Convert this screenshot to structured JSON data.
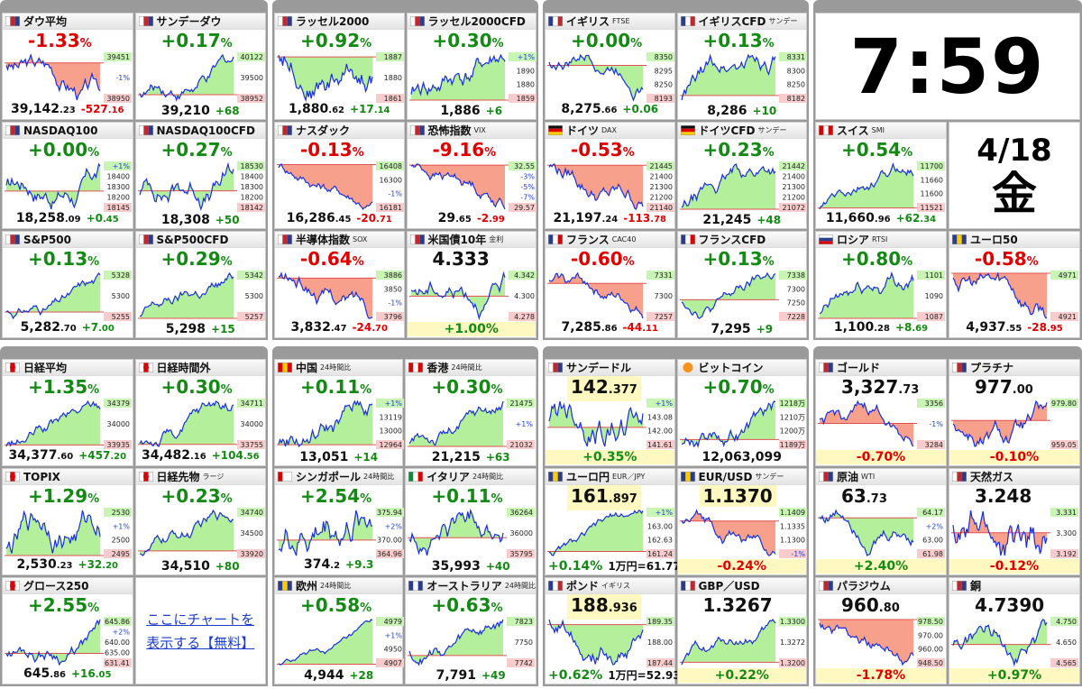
{
  "groups": [
    {
      "tiles": [
        {
          "flag": "us",
          "name": "ダウ平均",
          "headline": [
            "-1.33",
            "%"
          ],
          "scale": [
            "39451",
            "-1%",
            "38950"
          ],
          "bottom": [
            [
              "39,142",
              ".23"
            ],
            [
              "-527",
              ".16"
            ]
          ]
        },
        {
          "flag": "us",
          "name": "サンデーダウ",
          "headline": [
            "+0.17",
            "%"
          ],
          "scale": [
            "40122",
            "39500",
            "38952"
          ],
          "bottom": [
            "39,210",
            "+68"
          ]
        },
        {
          "flag": "us",
          "name": "NASDAQ100",
          "headline": [
            "+0.00",
            "%"
          ],
          "scale": [
            "+1%",
            "18400",
            "18300",
            "18200",
            "18145"
          ],
          "bottom": [
            [
              "18,258",
              ".09"
            ],
            [
              "+0",
              ".45"
            ]
          ]
        },
        {
          "flag": "us",
          "name": "NASDAQ100CFD",
          "headline": [
            "+0.27",
            "%"
          ],
          "scale": [
            "18530",
            "18400",
            "18300",
            "18200",
            "18142"
          ],
          "bottom": [
            "18,308",
            "+50"
          ]
        },
        {
          "flag": "us",
          "name": "S&P500",
          "headline": [
            "+0.13",
            "%"
          ],
          "scale": [
            "5328",
            "5300",
            "5255"
          ],
          "bottom": [
            [
              "5,282",
              ".70"
            ],
            [
              "+7",
              ".00"
            ]
          ]
        },
        {
          "flag": "us",
          "name": "S&P500CFD",
          "headline": [
            "+0.29",
            "%"
          ],
          "scale": [
            "5342",
            "5300",
            "5257"
          ],
          "bottom": [
            "5,298",
            "+15"
          ]
        }
      ]
    },
    {
      "tiles": [
        {
          "flag": "us",
          "name": "ラッセル2000",
          "headline": [
            "+0.92",
            "%"
          ],
          "scale": [
            "1887",
            "1880",
            "1861"
          ],
          "bottom": [
            [
              "1,880",
              ".62"
            ],
            [
              "+17",
              ".14"
            ]
          ]
        },
        {
          "flag": "us",
          "name": "ラッセル2000CFD",
          "headline": [
            "+0.30",
            "%"
          ],
          "scale": [
            "+1%",
            "1890",
            "1880",
            "1859"
          ],
          "bottom": [
            "1,886",
            "+6"
          ]
        },
        {
          "flag": "us",
          "name": "ナスダック",
          "headline": [
            "-0.13",
            "%"
          ],
          "scale": [
            "16408",
            "16300",
            "-1%",
            "16181"
          ],
          "bottom": [
            [
              "16,286",
              ".45"
            ],
            [
              "-20",
              ".71"
            ]
          ]
        },
        {
          "flag": "us",
          "name": "恐怖指数",
          "tag": "VIX",
          "headline": [
            "-9.16",
            "%"
          ],
          "scale": [
            "32.55",
            "-3%",
            "-5%",
            "-7%",
            "29.57"
          ],
          "bottom": [
            [
              "29",
              ".65"
            ],
            [
              "-2",
              ".99"
            ]
          ]
        },
        {
          "flag": "us",
          "name": "半導体指数",
          "tag": "SOX",
          "headline": [
            "-0.64",
            "%"
          ],
          "scale": [
            "3886",
            "3850",
            "-1%",
            "3796"
          ],
          "bottom": [
            [
              "3,832",
              ".47"
            ],
            [
              "-24",
              ".70"
            ]
          ]
        },
        {
          "flag": "us",
          "name": "米国債10年",
          "tag": "金利",
          "headline": [
            "4.333"
          ],
          "scale": [
            "4.342",
            "4.300",
            "4.278"
          ],
          "bottom": [
            "+1.00%"
          ]
        }
      ]
    },
    {
      "tiles": [
        {
          "flag": "uk",
          "name": "イギリス",
          "tag": "FTSE",
          "headline": [
            "+0.00",
            "%"
          ],
          "scale": [
            "8350",
            "8295",
            "8250",
            "8193"
          ],
          "bottom": [
            [
              "8,275",
              ".66"
            ],
            "+0.06"
          ]
        },
        {
          "flag": "uk",
          "name": "イギリスCFD",
          "tag": "サンデー",
          "headline": [
            "+0.13",
            "%"
          ],
          "scale": [
            "8331",
            "8300",
            "8250",
            "8182"
          ],
          "bottom": [
            "8,286",
            "+10"
          ]
        },
        {
          "flag": "de",
          "name": "ドイツ",
          "tag": "DAX",
          "headline": [
            "-0.53",
            "%"
          ],
          "scale": [
            "21445",
            "21400",
            "21300",
            "21200",
            "21140"
          ],
          "bottom": [
            [
              "21,197",
              ".24"
            ],
            [
              "-113",
              ".78"
            ]
          ]
        },
        {
          "flag": "de",
          "name": "ドイツCFD",
          "tag": "サンデー",
          "headline": [
            "+0.23",
            "%"
          ],
          "scale": [
            "21442",
            "21400",
            "21300",
            "21200",
            "21072"
          ],
          "bottom": [
            "21,245",
            "+48"
          ]
        },
        {
          "flag": "fr",
          "name": "フランス",
          "tag": "CAC40",
          "headline": [
            "-0.60",
            "%"
          ],
          "scale": [
            "7331",
            "7300",
            "7257"
          ],
          "bottom": [
            [
              "7,285",
              ".86"
            ],
            [
              "-44",
              ".11"
            ]
          ]
        },
        {
          "flag": "fr",
          "name": "フランスCFD",
          "headline": [
            "+0.13",
            "%"
          ],
          "scale": [
            "7338",
            "7300",
            "7250",
            "7228"
          ],
          "bottom": [
            "7,295",
            "+9"
          ]
        }
      ]
    },
    {
      "tiles": [
        {
          "kind": "clock",
          "text": "7:59"
        },
        {
          "flag": "ch",
          "name": "スイス",
          "tag": "SMI",
          "headline": [
            "+0.54",
            "%"
          ],
          "scale": [
            "11700",
            "11660",
            "11600",
            "11521"
          ],
          "bottom": [
            [
              "11,660",
              ".96"
            ],
            [
              "+62",
              ".34"
            ]
          ]
        },
        {
          "kind": "date",
          "date": "4/18",
          "weekday": "金"
        },
        {
          "flag": "ru",
          "name": "ロシア",
          "tag": "RTSI",
          "headline": [
            "+0.80",
            "%"
          ],
          "scale": [
            "1101",
            "1090",
            "1087"
          ],
          "bottom": [
            [
              "1,100",
              ".28"
            ],
            [
              "+8",
              ".69"
            ]
          ]
        },
        {
          "flag": "eu",
          "name": "ユーロ50",
          "headline": [
            "-0.58",
            "%"
          ],
          "scale": [
            "4971",
            "4921"
          ],
          "bottom": [
            [
              "4,937",
              ".55"
            ],
            [
              "-28",
              ".95"
            ]
          ]
        }
      ]
    },
    {
      "tiles": [
        {
          "flag": "jp",
          "name": "日経平均",
          "headline": [
            "+1.35",
            "%"
          ],
          "scale": [
            "34379",
            "34000",
            "33935"
          ],
          "bottom": [
            [
              "34,377",
              ".60"
            ],
            [
              "+457",
              ".20"
            ]
          ]
        },
        {
          "flag": "jp",
          "name": "日経時間外",
          "headline": [
            "+0.30",
            "%"
          ],
          "scale": [
            "34711",
            "34000",
            "33755"
          ],
          "bottom": [
            [
              "34,482",
              ".16"
            ],
            [
              "+104",
              ".56"
            ]
          ]
        },
        {
          "flag": "jp",
          "name": "TOPIX",
          "headline": [
            "+1.29",
            "%"
          ],
          "scale": [
            "2530",
            "+1%",
            "2500",
            "2495"
          ],
          "bottom": [
            [
              "2,530",
              ".23"
            ],
            [
              "+32",
              ".20"
            ]
          ]
        },
        {
          "flag": "jp",
          "name": "日経先物",
          "tag": "ラージ",
          "headline": [
            "+0.23",
            "%"
          ],
          "scale": [
            "34740",
            "34500",
            "33920"
          ],
          "bottom": [
            "34,510",
            "+80"
          ]
        },
        {
          "flag": "jp",
          "name": "グロース250",
          "headline": [
            "+2.55",
            "%"
          ],
          "scale": [
            "645.86",
            "+2%",
            "640.00",
            "635.00",
            "631.41"
          ],
          "bottom": [
            [
              "645",
              ".86"
            ],
            [
              "+16",
              ".05"
            ]
          ]
        },
        {
          "kind": "link",
          "text": "ここにチャートを表示する【無料】"
        }
      ]
    },
    {
      "tiles": [
        {
          "flag": "cn",
          "name": "中国",
          "tag": "24時間比",
          "headline": [
            "+0.11",
            "%"
          ],
          "scale": [
            "+1%",
            "13119",
            "13000",
            "12964"
          ],
          "bottom": [
            "13,051",
            "+14"
          ]
        },
        {
          "flag": "hk",
          "name": "香港",
          "tag": "24時間比",
          "headline": [
            "+0.30",
            "%"
          ],
          "scale": [
            "21475",
            "+1%",
            "21032"
          ],
          "bottom": [
            "21,215",
            "+63"
          ]
        },
        {
          "flag": "sg",
          "name": "シンガポール",
          "tag": "24時間比",
          "headline": [
            "+2.54",
            "%"
          ],
          "scale": [
            "375.94",
            "+2%",
            "370.00",
            "364.96"
          ],
          "bottom": [
            [
              "374",
              ".2"
            ],
            "+9.3"
          ]
        },
        {
          "flag": "it",
          "name": "イタリア",
          "tag": "24時間比",
          "headline": [
            "+0.11",
            "%"
          ],
          "scale": [
            "36264",
            "36000",
            "35795"
          ],
          "bottom": [
            "35,993",
            "+40"
          ]
        },
        {
          "flag": "eu",
          "name": "欧州",
          "tag": "24時間比",
          "headline": [
            "+0.58",
            "%"
          ],
          "scale": [
            "4979",
            "+1%",
            "4950",
            "4907"
          ],
          "bottom": [
            "4,944",
            "+28"
          ]
        },
        {
          "flag": "au",
          "name": "オーストラリア",
          "tag": "24時間比",
          "headline": [
            "+0.63",
            "%"
          ],
          "scale": [
            "7823",
            "7750",
            "7742"
          ],
          "bottom": [
            "7,791",
            "+49"
          ]
        }
      ]
    },
    {
      "tiles": [
        {
          "flag": "us",
          "name": "サンデードル",
          "headline": [
            "142",
            ".377"
          ],
          "highlight": true,
          "scale": [
            "+1%",
            "143.08",
            "142.00",
            "141.61"
          ],
          "bottom": [
            "+0.35%"
          ]
        },
        {
          "flag": "btc",
          "name": "ビットコイン",
          "headline": [
            "+0.70",
            "%"
          ],
          "scale": [
            "1218万",
            "1210万",
            "1200万",
            "1189万"
          ],
          "bottom": [
            "12,063,099"
          ]
        },
        {
          "flag": "eu",
          "name": "ユーロ円",
          "tag": "EUR／JPY",
          "headline": [
            "161",
            ".897"
          ],
          "highlight": true,
          "scale": [
            "+1%",
            "163.00",
            "162.63",
            "161.24"
          ],
          "bottom": [
            "+0.14%",
            "1万円=61.77"
          ]
        },
        {
          "flag": "eu",
          "name": "EUR/USD",
          "tag": "サンデー",
          "headline": [
            "1.1370"
          ],
          "highlight": true,
          "scale": [
            "1.1409",
            "1.1335",
            "1.1300",
            "-1%"
          ],
          "bottom": [
            "-0.24%"
          ]
        },
        {
          "flag": "uk",
          "name": "ポンド",
          "tag": "イギリス",
          "headline": [
            "188",
            ".936"
          ],
          "highlight": true,
          "scale": [
            "189.35",
            "188.00",
            "187.44"
          ],
          "bottom": [
            "+0.62%",
            "1万円=52.93"
          ]
        },
        {
          "flag": "uk",
          "name": "GBP／USD",
          "headline": [
            "1.3267"
          ],
          "scale": [
            "1.3300",
            "1.3272",
            "1.3200"
          ],
          "bottom": [
            "+0.22%"
          ]
        }
      ]
    },
    {
      "tiles": [
        {
          "flag": "us",
          "name": "ゴールド",
          "headline": [
            "3,327",
            ".73"
          ],
          "scale": [
            "3356",
            "-1%",
            "3284"
          ],
          "bottom": [
            "-0.70%"
          ]
        },
        {
          "flag": "us",
          "name": "プラチナ",
          "headline": [
            "977",
            ".00"
          ],
          "scale": [
            "979.80",
            "959.05"
          ],
          "bottom": [
            "-0.10%"
          ]
        },
        {
          "flag": "us",
          "name": "原油",
          "tag": "WTI",
          "headline": [
            "63",
            ".73"
          ],
          "scale": [
            "64.17",
            "+2%",
            "63.00",
            "61.98"
          ],
          "bottom": [
            "+2.40%"
          ]
        },
        {
          "flag": "us",
          "name": "天然ガス",
          "headline": [
            "3.248"
          ],
          "scale": [
            "3.331",
            "3.300",
            "3.192"
          ],
          "bottom": [
            "-0.12%"
          ]
        },
        {
          "flag": "us",
          "name": "パラジウム",
          "headline": [
            "960",
            ".80"
          ],
          "scale": [
            "978.50",
            "970.00",
            "960.00",
            "948.50"
          ],
          "bottom": [
            "-1.78%"
          ]
        },
        {
          "flag": "us",
          "name": "銅",
          "headline": [
            "4.7390"
          ],
          "scale": [
            "4.750",
            "4.650",
            "4.565"
          ],
          "bottom": [
            "+0.97%"
          ]
        }
      ]
    }
  ]
}
